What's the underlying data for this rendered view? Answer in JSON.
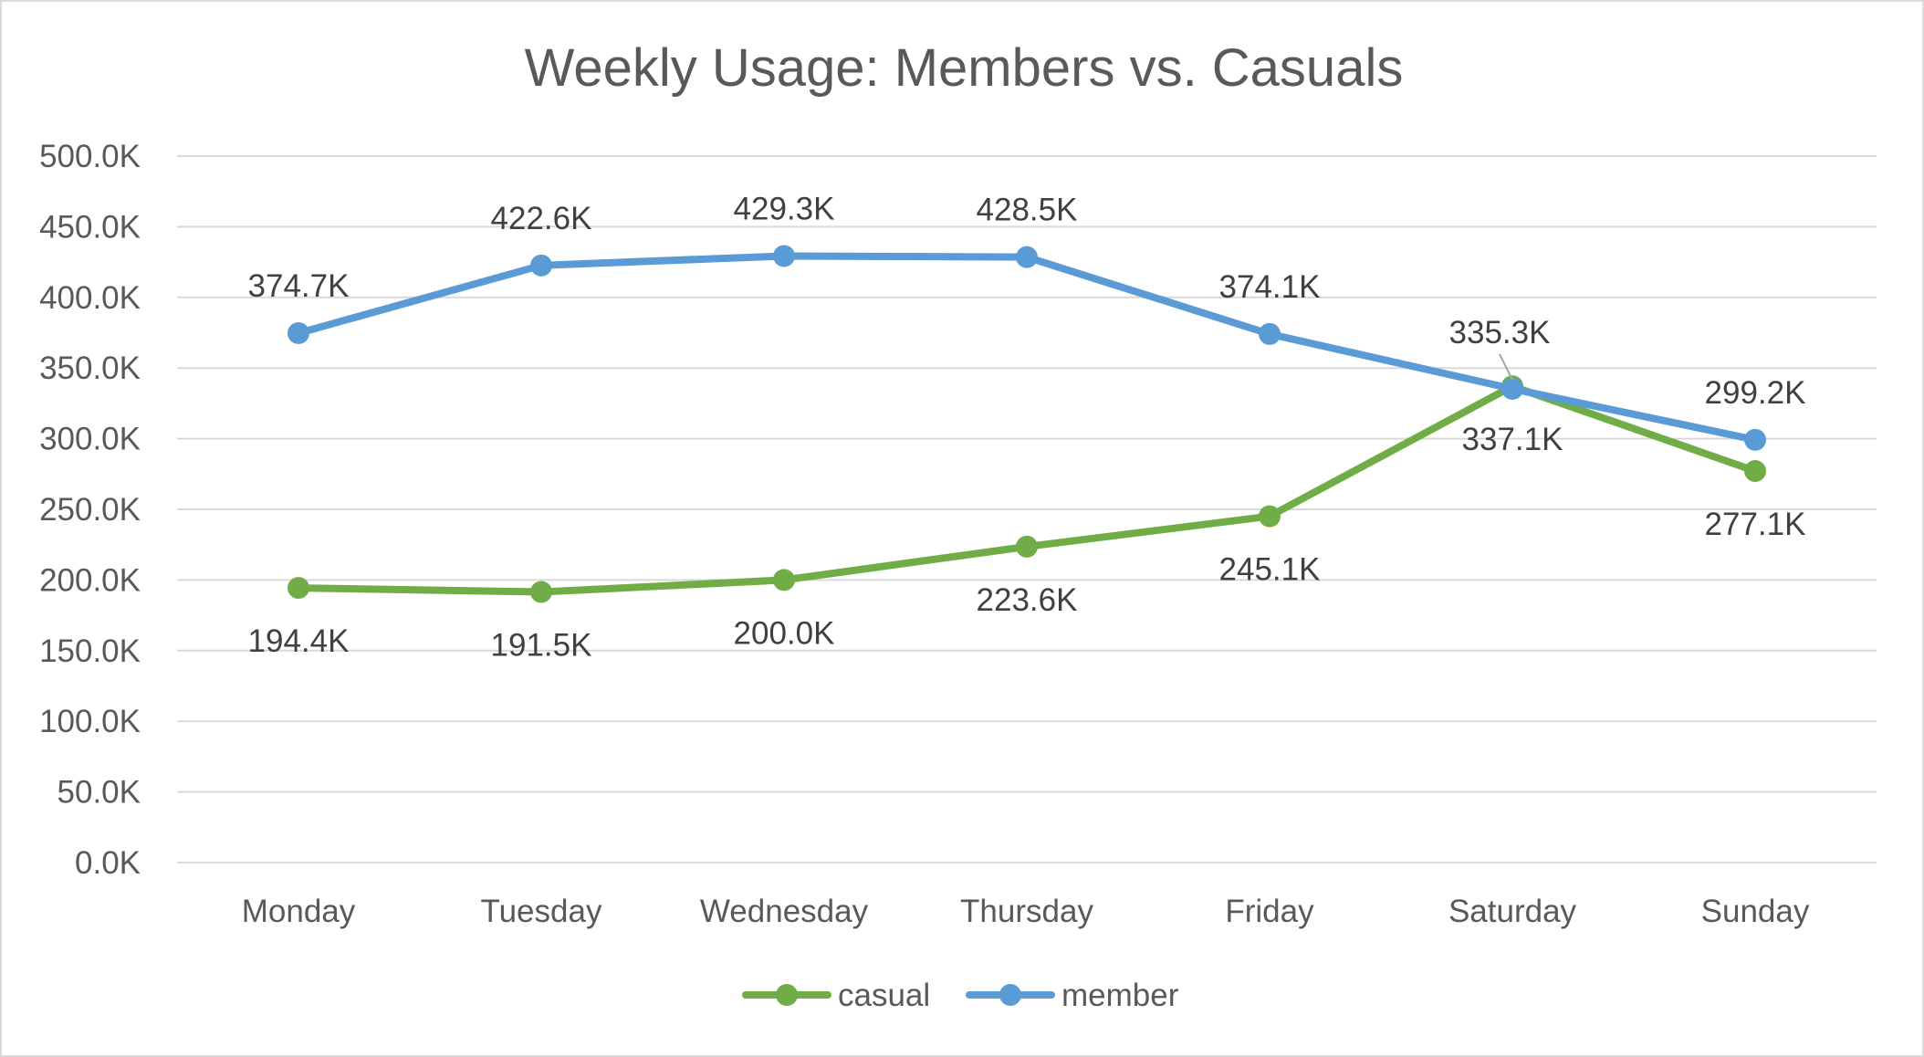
{
  "chart_data": {
    "type": "line",
    "title": "Weekly Usage: Members vs. Casuals",
    "categories": [
      "Monday",
      "Tuesday",
      "Wednesday",
      "Thursday",
      "Friday",
      "Saturday",
      "Sunday"
    ],
    "y_ticks": [
      "0.0K",
      "50.0K",
      "100.0K",
      "150.0K",
      "200.0K",
      "250.0K",
      "300.0K",
      "350.0K",
      "400.0K",
      "450.0K",
      "500.0K"
    ],
    "ylim": [
      0,
      500
    ],
    "y_unit": "K",
    "grid": true,
    "legend_position": "bottom",
    "series": [
      {
        "name": "casual",
        "color": "#70ad47",
        "values": [
          194.4,
          191.5,
          200.0,
          223.6,
          245.1,
          337.1,
          277.1
        ],
        "labels": [
          "194.4K",
          "191.5K",
          "200.0K",
          "223.6K",
          "245.1K",
          "337.1K",
          "277.1K"
        ]
      },
      {
        "name": "member",
        "color": "#5b9bd5",
        "values": [
          374.7,
          422.6,
          429.3,
          428.5,
          374.1,
          335.3,
          299.2
        ],
        "labels": [
          "374.7K",
          "422.6K",
          "429.3K",
          "428.5K",
          "374.1K",
          "335.3K",
          "299.2K"
        ]
      }
    ]
  }
}
